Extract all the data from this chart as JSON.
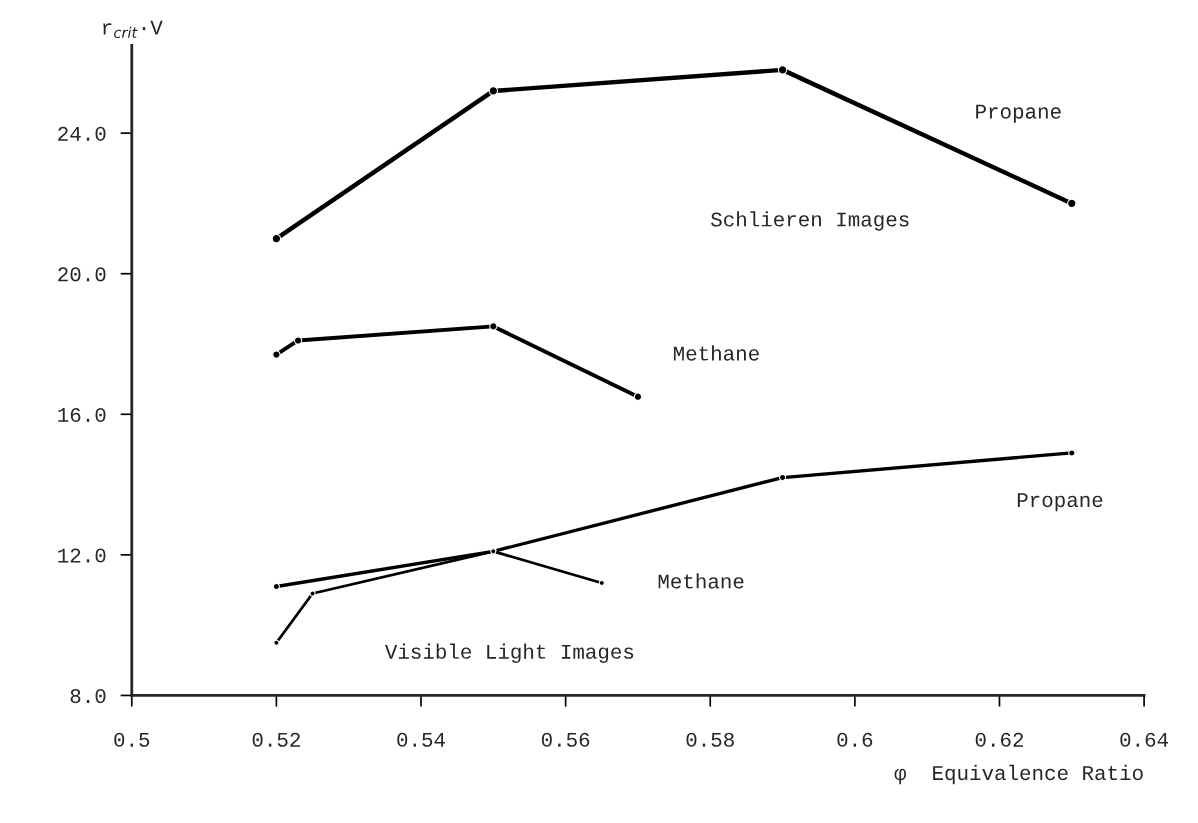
{
  "chart_data": {
    "type": "line",
    "xlabel": "φ  Equivalence Ratio",
    "ylabel": "r$_{crit}$·V",
    "series": [
      {
        "name": "Propane",
        "color": "#000000",
        "x": [
          0.52,
          0.55,
          0.59,
          0.63
        ],
        "values": [
          21.0,
          25.2,
          25.8,
          22.0
        ]
      },
      {
        "name": "Methane",
        "color": "#000000",
        "x": [
          0.52,
          0.523,
          0.55,
          0.57
        ],
        "values": [
          17.7,
          18.1,
          18.5,
          16.5
        ]
      },
      {
        "name": "Propane",
        "color": "#000000",
        "x": [
          0.52,
          0.55,
          0.59,
          0.63
        ],
        "values": [
          11.1,
          12.1,
          14.2,
          14.9
        ]
      },
      {
        "name": "Methane",
        "color": "#000000",
        "x": [
          0.52,
          0.525,
          0.55,
          0.565
        ],
        "values": [
          9.5,
          10.9,
          12.1,
          11.2
        ]
      }
    ],
    "annotations": [
      "Schlieren Images",
      "Visible Light Images"
    ],
    "xlim": [
      0.5,
      0.64
    ],
    "xticks": [
      0.5,
      0.52,
      0.54,
      0.56,
      0.58,
      0.6,
      0.62,
      0.64
    ],
    "ylim": [
      8.0,
      26.5
    ],
    "yticks": [
      {
        "value": 8,
        "label": "8.0"
      },
      {
        "value": 12,
        "label": "12.0"
      },
      {
        "value": 16,
        "label": "16.0"
      },
      {
        "value": 20,
        "label": "20.0"
      },
      {
        "value": 24,
        "label": "24.0"
      }
    ],
    "marker": "circle",
    "line_style": "solid",
    "grid": false,
    "legend": false
  }
}
